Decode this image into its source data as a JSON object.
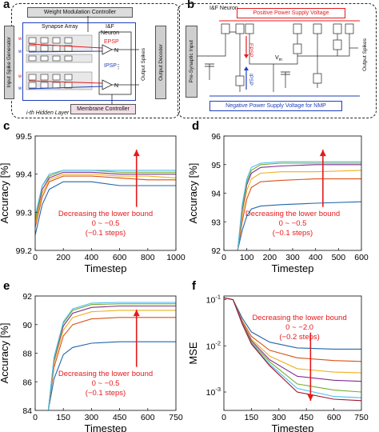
{
  "panels": {
    "a": {
      "letter": "a",
      "input_generator": "Input Spike Generator",
      "weight_controller": "Weight Modulation Controller",
      "synapse_array": "Synapse Array",
      "neuron": "I&F\nNeuron",
      "neuron_l1": "I&F",
      "neuron_l2": "Neuron",
      "epsp": "EPSP",
      "ipsp": "IPSP",
      "output_spikes": "Output Spikes",
      "output_decoder": "Output Decoder",
      "membrane_controller": "Membrane Controller",
      "hidden_layer": "i-th Hidden Layer",
      "n_label": "N",
      "s_label": "S",
      "w_label": "w"
    },
    "b": {
      "letter": "b",
      "neuron": "I&F Neuron",
      "positive_supply": "Positive Power Supply Voltage",
      "pre_input": "Pre-Synaptic Input",
      "negative_supply": "Negative Power Supply Voltage for NMP",
      "output_spikes": "Output Spikes",
      "epsp": "EPSP",
      "ipsp": "IPSP",
      "vm": "V",
      "vm_sub": "m"
    }
  },
  "colors": {
    "series": [
      "#2166ac",
      "#d95319",
      "#edb120",
      "#7e2f8e",
      "#77ac30",
      "#4dbeee",
      "#a2142f"
    ],
    "annotation": "#e41a1c",
    "positive_supply": "#e41a1c",
    "negative_supply": "#1f3fbf"
  },
  "chart_data": [
    {
      "letter": "c",
      "type": "line",
      "xlabel": "Timestep",
      "ylabel": "Accuracy [%]",
      "xlim": [
        0,
        1000
      ],
      "ylim": [
        99.2,
        99.5
      ],
      "xticks": [
        0,
        200,
        400,
        600,
        800,
        1000
      ],
      "yticks": [
        99.2,
        99.3,
        99.4,
        99.5
      ],
      "xtick_labels": [
        "0",
        "200",
        "400",
        "600",
        "800",
        "1000"
      ],
      "ytick_labels": [
        "99.2",
        "99.3",
        "99.4",
        "99.5"
      ],
      "log_y": false,
      "annotation": [
        "Decreasing the lower bound",
        "0 ~ −0.5",
        "(−0.1 steps)"
      ],
      "series": [
        {
          "x": [
            0,
            50,
            100,
            200,
            400,
            600,
            800,
            1000
          ],
          "values": [
            99.24,
            99.32,
            99.36,
            99.38,
            99.38,
            99.37,
            99.37,
            99.37
          ]
        },
        {
          "x": [
            0,
            50,
            100,
            200,
            400,
            600,
            800,
            1000
          ],
          "values": [
            99.26,
            99.34,
            99.38,
            99.395,
            99.395,
            99.39,
            99.385,
            99.385
          ]
        },
        {
          "x": [
            0,
            50,
            100,
            200,
            400,
            600,
            800,
            1000
          ],
          "values": [
            99.27,
            99.35,
            99.385,
            99.4,
            99.4,
            99.395,
            99.395,
            99.39
          ]
        },
        {
          "x": [
            0,
            50,
            100,
            200,
            400,
            600,
            800,
            1000
          ],
          "values": [
            99.28,
            99.36,
            99.39,
            99.405,
            99.405,
            99.4,
            99.4,
            99.4
          ]
        },
        {
          "x": [
            0,
            50,
            100,
            200,
            400,
            600,
            800,
            1000
          ],
          "values": [
            99.28,
            99.37,
            99.395,
            99.41,
            99.41,
            99.405,
            99.405,
            99.405
          ]
        },
        {
          "x": [
            0,
            50,
            100,
            200,
            400,
            600,
            800,
            1000
          ],
          "values": [
            99.29,
            99.37,
            99.4,
            99.41,
            99.41,
            99.41,
            99.41,
            99.41
          ]
        }
      ]
    },
    {
      "letter": "d",
      "type": "line",
      "xlabel": "Timestep",
      "ylabel": "Accuracy [%]",
      "xlim": [
        0,
        600
      ],
      "ylim": [
        92,
        96
      ],
      "xticks": [
        0,
        100,
        200,
        300,
        400,
        500,
        600
      ],
      "yticks": [
        92,
        93,
        94,
        95,
        96
      ],
      "xtick_labels": [
        "0",
        "100",
        "200",
        "300",
        "400",
        "500",
        "600"
      ],
      "ytick_labels": [
        "92",
        "93",
        "94",
        "95",
        "96"
      ],
      "log_y": false,
      "annotation": [
        "Decreasing the lower bound",
        "0 ~ −0.5",
        "(−0.1 steps)"
      ],
      "series": [
        {
          "x": [
            60,
            80,
            100,
            120,
            160,
            250,
            400,
            600
          ],
          "values": [
            92,
            92.7,
            93.2,
            93.45,
            93.55,
            93.6,
            93.65,
            93.7
          ]
        },
        {
          "x": [
            60,
            80,
            100,
            120,
            160,
            250,
            400,
            600
          ],
          "values": [
            92,
            93,
            93.8,
            94.2,
            94.4,
            94.45,
            94.5,
            94.5
          ]
        },
        {
          "x": [
            60,
            80,
            100,
            120,
            160,
            250,
            400,
            600
          ],
          "values": [
            92,
            93.2,
            94.1,
            94.5,
            94.7,
            94.75,
            94.75,
            94.8
          ]
        },
        {
          "x": [
            60,
            80,
            100,
            120,
            160,
            250,
            400,
            600
          ],
          "values": [
            92,
            93.4,
            94.3,
            94.7,
            94.9,
            94.95,
            95.0,
            95.0
          ]
        },
        {
          "x": [
            60,
            80,
            100,
            120,
            160,
            250,
            400,
            600
          ],
          "values": [
            92,
            93.5,
            94.4,
            94.8,
            95.0,
            95.05,
            95.05,
            95.05
          ]
        },
        {
          "x": [
            60,
            80,
            100,
            120,
            160,
            250,
            400,
            600
          ],
          "values": [
            92,
            93.6,
            94.5,
            94.9,
            95.05,
            95.1,
            95.1,
            95.1
          ]
        }
      ]
    },
    {
      "letter": "e",
      "type": "line",
      "xlabel": "Timestep",
      "ylabel": "Accuracy [%]",
      "xlim": [
        0,
        750
      ],
      "ylim": [
        84,
        92
      ],
      "xticks": [
        0,
        150,
        300,
        450,
        600,
        750
      ],
      "yticks": [
        84,
        86,
        88,
        90,
        92
      ],
      "xtick_labels": [
        "0",
        "150",
        "300",
        "450",
        "600",
        "750"
      ],
      "ytick_labels": [
        "84",
        "86",
        "88",
        "90",
        "92"
      ],
      "log_y": false,
      "annotation": [
        "Decreasing the lower bound",
        "0 ~ −0.5",
        "(−0.1 steps)"
      ],
      "series": [
        {
          "x": [
            70,
            100,
            150,
            200,
            300,
            450,
            600,
            750
          ],
          "values": [
            84,
            86.2,
            87.9,
            88.4,
            88.7,
            88.8,
            88.8,
            88.8
          ]
        },
        {
          "x": [
            70,
            100,
            150,
            200,
            300,
            450,
            600,
            750
          ],
          "values": [
            84,
            87,
            89.2,
            90.0,
            90.4,
            90.5,
            90.5,
            90.5
          ]
        },
        {
          "x": [
            70,
            100,
            150,
            200,
            300,
            450,
            600,
            750
          ],
          "values": [
            84,
            87.3,
            89.6,
            90.5,
            90.9,
            91.0,
            91.0,
            91.0
          ]
        },
        {
          "x": [
            70,
            100,
            150,
            200,
            300,
            450,
            600,
            750
          ],
          "values": [
            84,
            87.5,
            89.9,
            90.8,
            91.2,
            91.3,
            91.3,
            91.3
          ]
        },
        {
          "x": [
            70,
            100,
            150,
            200,
            300,
            450,
            600,
            750
          ],
          "values": [
            84,
            87.6,
            90.1,
            91.0,
            91.4,
            91.45,
            91.45,
            91.45
          ]
        },
        {
          "x": [
            70,
            100,
            150,
            200,
            300,
            450,
            600,
            750
          ],
          "values": [
            84,
            87.7,
            90.2,
            91.1,
            91.5,
            91.55,
            91.55,
            91.55
          ]
        }
      ]
    },
    {
      "letter": "f",
      "type": "line",
      "xlabel": "Timestep",
      "ylabel": "MSE",
      "xlim": [
        0,
        750
      ],
      "ylim": [
        0.0004,
        0.12
      ],
      "xticks": [
        0,
        150,
        300,
        450,
        600,
        750
      ],
      "yticks": [
        0.001,
        0.01,
        0.1
      ],
      "xtick_labels": [
        "0",
        "150",
        "300",
        "450",
        "600",
        "750"
      ],
      "ytick_labels": [
        "10-3",
        "10-2",
        "10-1"
      ],
      "log_y": true,
      "annotation": [
        "Decreasing the lower bound",
        "0 ~ −2.0",
        "(−0.2 steps)"
      ],
      "series": [
        {
          "x": [
            0,
            50,
            100,
            150,
            250,
            400,
            600,
            750
          ],
          "values": [
            0.11,
            0.1,
            0.04,
            0.02,
            0.012,
            0.009,
            0.0085,
            0.0085
          ]
        },
        {
          "x": [
            0,
            50,
            100,
            150,
            250,
            400,
            600,
            750
          ],
          "values": [
            0.11,
            0.1,
            0.035,
            0.016,
            0.008,
            0.0055,
            0.0048,
            0.0046
          ]
        },
        {
          "x": [
            0,
            50,
            100,
            150,
            250,
            400,
            600,
            750
          ],
          "values": [
            0.11,
            0.1,
            0.033,
            0.014,
            0.006,
            0.0032,
            0.0027,
            0.0026
          ]
        },
        {
          "x": [
            0,
            50,
            100,
            150,
            250,
            400,
            600,
            750
          ],
          "values": [
            0.11,
            0.1,
            0.032,
            0.013,
            0.005,
            0.0022,
            0.0018,
            0.0017
          ]
        },
        {
          "x": [
            0,
            50,
            100,
            150,
            250,
            400,
            600,
            750
          ],
          "values": [
            0.11,
            0.1,
            0.031,
            0.012,
            0.0045,
            0.0015,
            0.0011,
            0.001
          ]
        },
        {
          "x": [
            0,
            50,
            100,
            150,
            250,
            400,
            600,
            750
          ],
          "values": [
            0.11,
            0.1,
            0.03,
            0.0115,
            0.004,
            0.0012,
            0.0008,
            0.00075
          ]
        },
        {
          "x": [
            0,
            50,
            100,
            150,
            250,
            400,
            600,
            750
          ],
          "values": [
            0.11,
            0.1,
            0.03,
            0.011,
            0.0037,
            0.001,
            0.0007,
            0.00065
          ]
        }
      ]
    }
  ]
}
